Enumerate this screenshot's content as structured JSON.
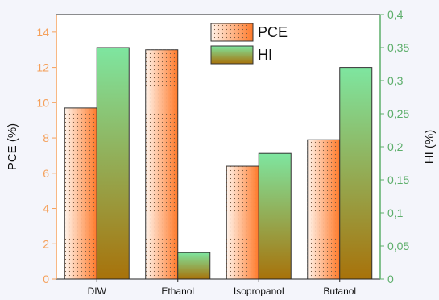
{
  "chart_data": {
    "type": "bar",
    "categories": [
      "DIW",
      "Ethanol",
      "Isopropanol",
      "Butanol"
    ],
    "series": [
      {
        "name": "PCE",
        "axis": "left",
        "values": [
          9.7,
          13.0,
          6.4,
          7.9
        ]
      },
      {
        "name": "HI",
        "axis": "right",
        "values": [
          0.35,
          0.04,
          0.19,
          0.32
        ]
      }
    ],
    "ylabel": "PCE (%)",
    "ylabel_right": "HI (%)",
    "ylim": [
      0,
      15
    ],
    "ylim_right": [
      0,
      0.4
    ],
    "yticks": [
      "0",
      "2",
      "4",
      "6",
      "8",
      "10",
      "12",
      "14"
    ],
    "yticks_right": [
      "0",
      "0,05",
      "0,1",
      "0,15",
      "0,2",
      "0,25",
      "0,3",
      "0,35",
      "0,4"
    ],
    "legend_position": "top-center",
    "grid": false,
    "colors": {
      "left_axis": "#f5a05a",
      "right_axis": "#5cae6a",
      "pce_light": "#fff3ea",
      "pce_dark": "#ff7a2a",
      "hi_light": "#7ee6a0",
      "hi_dark": "#a8720a",
      "background": "#f4f5fb"
    }
  }
}
